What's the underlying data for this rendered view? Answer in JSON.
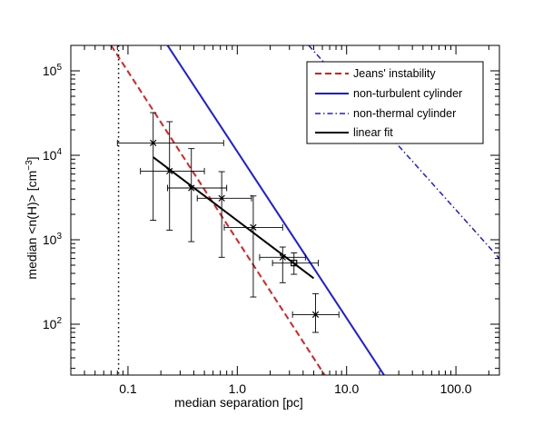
{
  "chart_data": {
    "type": "scatter",
    "title": "",
    "xlabel": "median separation [pc]",
    "ylabel_main": "median <n(H)> [cm",
    "ylabel_sup": "−3",
    "ylabel_end": "]",
    "xscale": "log",
    "yscale": "log",
    "xlim": [
      0.03,
      250
    ],
    "ylim": [
      25,
      200000
    ],
    "x_ticks": [
      {
        "value": 0.1,
        "label": "0.1"
      },
      {
        "value": 1,
        "label": "1.0"
      },
      {
        "value": 10,
        "label": "10.0"
      },
      {
        "value": 100,
        "label": "100.0"
      }
    ],
    "y_ticks": [
      {
        "value": 100,
        "base": "10",
        "exp": "2"
      },
      {
        "value": 1000,
        "base": "10",
        "exp": "3"
      },
      {
        "value": 10000,
        "base": "10",
        "exp": "4"
      },
      {
        "value": 100000,
        "base": "10",
        "exp": "5"
      }
    ],
    "grid": false,
    "legend_position": "top-right",
    "series": [
      {
        "name": "Jeans' instability",
        "color": "#e02020",
        "dash": "dashed",
        "points": [
          [
            0.07,
            200000
          ],
          [
            6.3,
            25
          ]
        ]
      },
      {
        "name": "non-turbulent cylinder",
        "color": "#1a1aee",
        "dash": "solid",
        "points": [
          [
            0.23,
            200000
          ],
          [
            22,
            25
          ]
        ]
      },
      {
        "name": "non-thermal cylinder",
        "color": "#1a1aee",
        "dash": "dashdot",
        "points": [
          [
            4.5,
            200000
          ],
          [
            250,
            600
          ]
        ]
      },
      {
        "name": "linear fit",
        "color": "#000000",
        "dash": "solid",
        "points": [
          [
            0.17,
            9500
          ],
          [
            5,
            350
          ]
        ]
      }
    ],
    "vertical_reference_line": {
      "x": 0.082,
      "style": "dotted",
      "color": "#000000"
    },
    "data_points": [
      {
        "x": 0.17,
        "y": 14000,
        "xerr": [
          0.08,
          0.75
        ],
        "yerr": [
          1700,
          32000
        ],
        "marker": "x"
      },
      {
        "x": 0.24,
        "y": 6500,
        "xerr": [
          0.13,
          0.5
        ],
        "yerr": [
          1300,
          25000
        ],
        "marker": "x"
      },
      {
        "x": 0.38,
        "y": 4100,
        "xerr": [
          0.23,
          0.8
        ],
        "yerr": [
          950,
          12000
        ],
        "marker": "x"
      },
      {
        "x": 0.72,
        "y": 3100,
        "xerr": [
          0.43,
          1.35
        ],
        "yerr": [
          620,
          6400
        ],
        "marker": "x"
      },
      {
        "x": 1.4,
        "y": 1400,
        "xerr": [
          0.76,
          2.6
        ],
        "yerr": [
          210,
          3300
        ],
        "marker": "x"
      },
      {
        "x": 2.6,
        "y": 620,
        "xerr": [
          1.6,
          4.2
        ],
        "yerr": [
          310,
          820
        ],
        "marker": "x"
      },
      {
        "x": 3.3,
        "y": 530,
        "xerr": [
          2.1,
          5.5
        ],
        "yerr": [
          390,
          700
        ],
        "marker": "square"
      },
      {
        "x": 5.2,
        "y": 130,
        "xerr": [
          3.2,
          8.5
        ],
        "yerr": [
          80,
          230
        ],
        "marker": "x"
      }
    ]
  }
}
